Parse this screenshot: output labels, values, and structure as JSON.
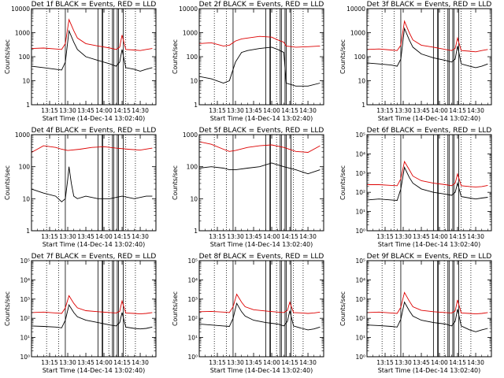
{
  "colors": {
    "events": "#000000",
    "lld": "#dd0000",
    "axis": "#000000"
  },
  "x_tick_labels": [
    "13:15",
    "13:30",
    "13:45",
    "14:00",
    "14:15",
    "14:30"
  ],
  "x_tick_minutes": [
    15,
    30,
    45,
    60,
    75,
    90
  ],
  "x_range_minutes": [
    0,
    103
  ],
  "xlabel": "Start Time (14-Dec-14 13:02:40)",
  "ylabel": "Counts/sec",
  "dotted_minutes": [
    12.5,
    22.5,
    64,
    78,
    86
  ],
  "solid_minutes": [
    28,
    55,
    58.5,
    59,
    67,
    68,
    71,
    72,
    76
  ],
  "chart_data": [
    {
      "type": "line",
      "title": "Det 1f BLACK = Events, RED = LLD",
      "log": true,
      "ylim": [
        1,
        10000
      ],
      "yticks": [
        "1",
        "10",
        "100",
        "1000",
        "10000"
      ],
      "series": [
        {
          "name": "Events",
          "x": [
            0,
            10,
            20,
            25,
            28,
            31,
            35,
            38,
            45,
            55,
            65,
            70,
            73,
            75,
            78,
            85,
            90,
            95,
            100
          ],
          "values": [
            40,
            35,
            30,
            28,
            60,
            1200,
            400,
            200,
            100,
            70,
            50,
            40,
            60,
            200,
            35,
            30,
            25,
            30,
            35
          ]
        },
        {
          "name": "LLD",
          "x": [
            0,
            10,
            20,
            25,
            28,
            31,
            35,
            38,
            45,
            55,
            65,
            70,
            73,
            75,
            78,
            85,
            90,
            95,
            100
          ],
          "values": [
            220,
            230,
            210,
            200,
            350,
            3500,
            1200,
            600,
            350,
            280,
            230,
            200,
            250,
            800,
            200,
            190,
            180,
            200,
            220
          ]
        }
      ]
    },
    {
      "type": "line",
      "title": "Det 2f BLACK = Events, RED = LLD",
      "log": true,
      "ylim": [
        1,
        10000
      ],
      "yticks": [
        "1",
        "10",
        "100",
        "1000",
        "10000"
      ],
      "series": [
        {
          "name": "Events",
          "x": [
            0,
            10,
            20,
            25,
            30,
            35,
            40,
            50,
            60,
            65,
            70,
            72,
            80,
            90,
            100
          ],
          "values": [
            15,
            12,
            8,
            10,
            60,
            150,
            180,
            220,
            250,
            200,
            150,
            8,
            6,
            6,
            8
          ]
        },
        {
          "name": "LLD",
          "x": [
            0,
            10,
            20,
            25,
            30,
            35,
            40,
            50,
            60,
            65,
            70,
            72,
            80,
            90,
            100
          ],
          "values": [
            350,
            380,
            280,
            300,
            450,
            550,
            600,
            700,
            650,
            500,
            400,
            280,
            250,
            260,
            280
          ]
        }
      ]
    },
    {
      "type": "line",
      "title": "Det 3f BLACK = Events, RED = LLD",
      "log": true,
      "ylim": [
        1,
        10000
      ],
      "yticks": [
        "1",
        "10",
        "100",
        "1000",
        "10000"
      ],
      "series": [
        {
          "name": "Events",
          "x": [
            0,
            10,
            20,
            25,
            28,
            31,
            35,
            38,
            45,
            55,
            65,
            70,
            73,
            75,
            78,
            85,
            90,
            95,
            100
          ],
          "values": [
            55,
            50,
            45,
            40,
            80,
            1500,
            500,
            250,
            130,
            90,
            70,
            60,
            80,
            280,
            50,
            40,
            35,
            40,
            50
          ]
        },
        {
          "name": "LLD",
          "x": [
            0,
            10,
            20,
            25,
            28,
            31,
            35,
            38,
            45,
            55,
            65,
            70,
            73,
            75,
            78,
            85,
            90,
            95,
            100
          ],
          "values": [
            200,
            210,
            190,
            180,
            300,
            3000,
            1000,
            500,
            300,
            250,
            200,
            180,
            220,
            600,
            180,
            170,
            160,
            180,
            200
          ]
        }
      ]
    },
    {
      "type": "line",
      "title": "Det 4f BLACK = Events, RED = LLD",
      "log": true,
      "ylim": [
        1,
        1000
      ],
      "yticks": [
        "1",
        "10",
        "100",
        "1000"
      ],
      "series": [
        {
          "name": "Events",
          "x": [
            0,
            10,
            20,
            25,
            28,
            30,
            31,
            33,
            35,
            38,
            45,
            55,
            65,
            75,
            85,
            95,
            100
          ],
          "values": [
            20,
            15,
            12,
            8,
            10,
            40,
            100,
            30,
            12,
            10,
            12,
            10,
            10,
            12,
            10,
            12,
            12
          ]
        },
        {
          "name": "LLD",
          "x": [
            0,
            10,
            20,
            25,
            30,
            40,
            50,
            60,
            70,
            80,
            90,
            100
          ],
          "values": [
            280,
            450,
            400,
            350,
            320,
            350,
            400,
            420,
            380,
            350,
            330,
            380
          ]
        }
      ]
    },
    {
      "type": "line",
      "title": "Det 5f BLACK = Events, RED = LLD",
      "log": true,
      "ylim": [
        1,
        1000
      ],
      "yticks": [
        "1",
        "10",
        "100",
        "1000"
      ],
      "series": [
        {
          "name": "Events",
          "x": [
            0,
            10,
            20,
            25,
            30,
            40,
            50,
            60,
            70,
            80,
            90,
            100
          ],
          "values": [
            90,
            100,
            90,
            80,
            80,
            90,
            100,
            130,
            100,
            80,
            60,
            80
          ]
        },
        {
          "name": "LLD",
          "x": [
            0,
            10,
            20,
            25,
            30,
            40,
            50,
            60,
            70,
            80,
            90,
            100
          ],
          "values": [
            600,
            500,
            350,
            300,
            320,
            400,
            450,
            480,
            400,
            300,
            280,
            450
          ]
        }
      ]
    },
    {
      "type": "line",
      "title": "Det 6f BLACK = Events, RED = LLD",
      "log": true,
      "ylim": [
        1,
        100000
      ],
      "yticks": [
        "10⁰",
        "10¹",
        "10²",
        "10³",
        "10⁴",
        "10⁵"
      ],
      "series": [
        {
          "name": "Events",
          "x": [
            0,
            10,
            20,
            25,
            28,
            31,
            35,
            38,
            45,
            55,
            65,
            70,
            73,
            75,
            78,
            85,
            90,
            95,
            100
          ],
          "values": [
            40,
            45,
            40,
            38,
            150,
            2000,
            600,
            300,
            150,
            100,
            80,
            70,
            100,
            300,
            60,
            50,
            45,
            50,
            55
          ]
        },
        {
          "name": "LLD",
          "x": [
            0,
            10,
            20,
            25,
            28,
            31,
            35,
            38,
            45,
            55,
            65,
            70,
            73,
            75,
            78,
            85,
            90,
            95,
            100
          ],
          "values": [
            250,
            250,
            230,
            220,
            500,
            4000,
            1500,
            700,
            400,
            300,
            250,
            220,
            300,
            900,
            220,
            200,
            190,
            200,
            230
          ]
        }
      ]
    },
    {
      "type": "line",
      "title": "Det 7f BLACK = Events, RED = LLD",
      "log": true,
      "ylim": [
        1,
        100000
      ],
      "yticks": [
        "10⁰",
        "10¹",
        "10²",
        "10³",
        "10⁴",
        "10⁵"
      ],
      "series": [
        {
          "name": "Events",
          "x": [
            0,
            10,
            20,
            25,
            28,
            31,
            35,
            38,
            45,
            55,
            65,
            70,
            73,
            75,
            78,
            85,
            90,
            95,
            100
          ],
          "values": [
            40,
            38,
            35,
            32,
            80,
            500,
            200,
            120,
            80,
            60,
            45,
            40,
            60,
            200,
            35,
            30,
            28,
            30,
            35
          ]
        },
        {
          "name": "LLD",
          "x": [
            0,
            10,
            20,
            25,
            28,
            31,
            35,
            38,
            45,
            55,
            65,
            70,
            73,
            75,
            78,
            85,
            90,
            95,
            100
          ],
          "values": [
            200,
            210,
            190,
            180,
            350,
            1500,
            600,
            350,
            250,
            220,
            200,
            190,
            230,
            800,
            190,
            180,
            170,
            180,
            200
          ]
        }
      ]
    },
    {
      "type": "line",
      "title": "Det 8f BLACK = Events, RED = LLD",
      "log": true,
      "ylim": [
        1,
        100000
      ],
      "yticks": [
        "10⁰",
        "10¹",
        "10²",
        "10³",
        "10⁴",
        "10⁵"
      ],
      "series": [
        {
          "name": "Events",
          "x": [
            0,
            10,
            20,
            25,
            28,
            31,
            35,
            38,
            45,
            55,
            65,
            70,
            73,
            75,
            78,
            85,
            90,
            95,
            100
          ],
          "values": [
            50,
            45,
            40,
            38,
            100,
            600,
            220,
            130,
            80,
            60,
            50,
            40,
            70,
            250,
            40,
            30,
            25,
            28,
            35
          ]
        },
        {
          "name": "LLD",
          "x": [
            0,
            10,
            20,
            25,
            28,
            31,
            35,
            38,
            45,
            55,
            65,
            70,
            73,
            75,
            78,
            85,
            90,
            95,
            100
          ],
          "values": [
            220,
            230,
            210,
            200,
            400,
            1800,
            700,
            400,
            280,
            240,
            210,
            200,
            260,
            700,
            200,
            190,
            180,
            190,
            210
          ]
        }
      ]
    },
    {
      "type": "line",
      "title": "Det 9f BLACK = Events, RED = LLD",
      "log": true,
      "ylim": [
        1,
        100000
      ],
      "yticks": [
        "10⁰",
        "10¹",
        "10²",
        "10³",
        "10⁴",
        "10⁵"
      ],
      "series": [
        {
          "name": "Events",
          "x": [
            0,
            10,
            20,
            25,
            28,
            31,
            35,
            38,
            45,
            55,
            65,
            70,
            73,
            75,
            78,
            85,
            90,
            95,
            100
          ],
          "values": [
            45,
            42,
            38,
            35,
            90,
            700,
            250,
            130,
            80,
            60,
            50,
            40,
            70,
            300,
            40,
            25,
            20,
            25,
            30
          ]
        },
        {
          "name": "LLD",
          "x": [
            0,
            10,
            20,
            25,
            28,
            31,
            35,
            38,
            45,
            55,
            65,
            70,
            73,
            75,
            78,
            85,
            90,
            95,
            100
          ],
          "values": [
            200,
            210,
            190,
            180,
            380,
            2200,
            800,
            400,
            260,
            220,
            200,
            190,
            240,
            900,
            190,
            180,
            170,
            180,
            200
          ]
        }
      ]
    }
  ]
}
